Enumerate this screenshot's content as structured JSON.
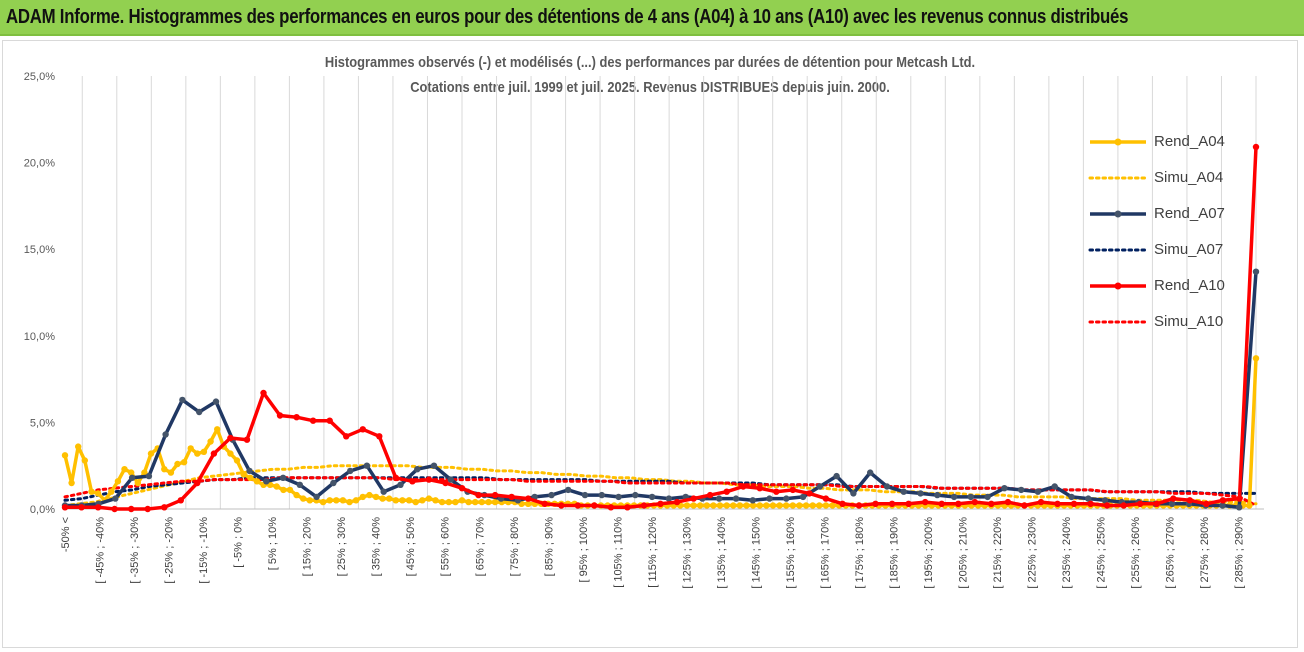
{
  "banner": {
    "title": "ADAM Informe. Histogrammes des performances en euros pour des détentions de 4 ans (A04) à 10 ans (A10) avec les revenus connus distribués"
  },
  "chart_data": {
    "type": "line",
    "title": "Histogrammes observés (-) et modélisés (...) des performances par durées de détention pour Metcash Ltd.",
    "subtitle": "Cotations entre juil. 1999 et juil. 2025. Revenus DISTRIBUES depuis juin. 2000.",
    "xlabel": "",
    "ylabel": "",
    "ylim": [
      0,
      25
    ],
    "y_ticks": [
      "0,0%",
      "5,0%",
      "10,0%",
      "15,0%",
      "20,0%",
      "25,0%"
    ],
    "grid": "vertical",
    "legend_position": "right",
    "x_labels": [
      "-50% <",
      "[ -45% ; -40%",
      "[ -35% ; -30%",
      "[ -25% ; -20%",
      "[ -15% ; -10%",
      "[ -5% ; 0%",
      "[ 5% ; 10%",
      "[ 15% ; 20%",
      "[ 25% ; 30%",
      "[ 35% ; 40%",
      "[ 45% ; 50%",
      "[ 55% ; 60%",
      "[ 65% ; 70%",
      "[ 75% ; 80%",
      "[ 85% ; 90%",
      "[ 95% ; 100%",
      "[ 105% ; 110%",
      "[ 115% ; 120%",
      "[ 125% ; 130%",
      "[ 135% ; 140%",
      "[ 145% ; 150%",
      "[ 155% ; 160%",
      "[ 165% ; 170%",
      "[ 175% ; 180%",
      "[ 185% ; 190%",
      "[ 195% ; 200%",
      "[ 205% ; 210%",
      "[ 215% ; 220%",
      "[ 225% ; 230%",
      "[ 235% ; 240%",
      "[ 245% ; 250%",
      "[ 255% ; 260%",
      "[ 265% ; 270%",
      "[ 275% ; 280%",
      "[ 285% ; 290%"
    ],
    "series": [
      {
        "name": "Rend_A04",
        "style": "solid",
        "markers": true,
        "color": "#ffc000",
        "values": [
          3.1,
          1.5,
          3.6,
          2.8,
          1.0,
          0.9,
          0.5,
          1.0,
          1.6,
          2.3,
          2.1,
          1.5,
          2.1,
          3.2,
          3.5,
          2.3,
          2.1,
          2.6,
          2.7,
          3.5,
          3.2,
          3.3,
          3.9,
          4.6,
          3.6,
          3.2,
          2.8,
          2.0,
          1.8,
          1.6,
          1.4,
          1.4,
          1.3,
          1.1,
          1.1,
          0.8,
          0.6,
          0.5,
          0.5,
          0.4,
          0.5,
          0.5,
          0.5,
          0.4,
          0.5,
          0.7,
          0.8,
          0.7,
          0.6,
          0.6,
          0.5,
          0.5,
          0.5,
          0.4,
          0.5,
          0.6,
          0.5,
          0.4,
          0.4,
          0.4,
          0.5,
          0.4,
          0.4,
          0.4,
          0.4,
          0.4,
          0.4,
          0.4,
          0.4,
          0.3,
          0.3,
          0.3,
          0.3,
          0.3,
          0.3,
          0.3,
          0.3,
          0.3,
          0.2,
          0.2,
          0.2,
          0.2,
          0.2,
          0.2,
          0.2,
          0.2,
          0.2,
          0.2,
          0.2,
          0.2,
          0.2,
          0.2,
          0.2,
          0.2,
          0.2,
          0.2,
          0.2,
          0.2,
          0.2,
          0.2,
          0.2,
          0.2,
          0.2,
          0.2,
          0.2,
          0.2,
          0.2,
          0.2,
          0.2,
          0.2,
          0.2,
          0.2,
          0.2,
          0.2,
          0.2,
          0.2,
          0.2,
          0.2,
          0.2,
          0.2,
          0.2,
          0.2,
          0.2,
          0.2,
          0.2,
          0.2,
          0.2,
          0.2,
          0.2,
          0.2,
          0.2,
          0.2,
          0.2,
          0.2,
          0.2,
          0.2,
          0.2,
          0.2,
          0.2,
          0.2,
          0.2,
          0.2,
          0.2,
          0.2,
          0.2,
          0.2,
          0.2,
          0.2,
          0.2,
          0.2,
          0.2,
          0.2,
          0.2,
          0.2,
          0.2,
          0.2,
          0.2,
          0.2,
          0.2,
          0.2,
          0.2,
          0.2,
          0.2,
          0.2,
          0.2,
          0.2,
          0.2,
          0.2,
          0.2,
          0.2,
          0.2,
          0.2,
          0.2,
          0.2,
          0.2,
          0.2,
          0.2,
          0.2,
          0.2,
          0.2,
          8.7
        ]
      },
      {
        "name": "Simu_A04",
        "style": "dotted",
        "markers": false,
        "color": "#ffc000",
        "values": [
          0.2,
          0.3,
          0.4,
          0.6,
          0.8,
          1.0,
          1.2,
          1.4,
          1.6,
          1.8,
          1.9,
          2.0,
          2.1,
          2.2,
          2.3,
          2.3,
          2.4,
          2.4,
          2.5,
          2.5,
          2.5,
          2.5,
          2.5,
          2.5,
          2.4,
          2.4,
          2.4,
          2.3,
          2.3,
          2.2,
          2.2,
          2.1,
          2.1,
          2.0,
          2.0,
          1.9,
          1.9,
          1.8,
          1.8,
          1.7,
          1.7,
          1.6,
          1.6,
          1.5,
          1.5,
          1.4,
          1.4,
          1.3,
          1.3,
          1.3,
          1.2,
          1.2,
          1.1,
          1.1,
          1.1,
          1.0,
          1.0,
          1.0,
          0.9,
          0.9,
          0.9,
          0.8,
          0.8,
          0.8,
          0.7,
          0.7,
          0.7,
          0.7,
          0.6,
          0.6,
          0.6,
          0.6,
          0.5,
          0.5,
          0.5,
          0.5,
          0.5,
          0.4,
          0.4,
          0.4,
          0.3
        ]
      },
      {
        "name": "Rend_A07",
        "style": "solid",
        "markers": true,
        "color": "#203864",
        "values": [
          0.2,
          0.2,
          0.3,
          0.6,
          1.8,
          1.9,
          4.3,
          6.3,
          5.6,
          6.2,
          4.0,
          2.2,
          1.6,
          1.8,
          1.4,
          0.7,
          1.5,
          2.2,
          2.5,
          1.0,
          1.4,
          2.3,
          2.5,
          1.7,
          1.0,
          0.8,
          0.6,
          0.5,
          0.7,
          0.8,
          1.1,
          0.8,
          0.8,
          0.7,
          0.8,
          0.7,
          0.6,
          0.7,
          0.6,
          0.6,
          0.6,
          0.5,
          0.6,
          0.6,
          0.7,
          1.3,
          1.9,
          0.9,
          2.1,
          1.3,
          1.0,
          0.9,
          0.8,
          0.7,
          0.7,
          0.7,
          1.2,
          1.1,
          1.0,
          1.3,
          0.7,
          0.6,
          0.5,
          0.4,
          0.4,
          0.3,
          0.3,
          0.3,
          0.2,
          0.2,
          0.1,
          13.7
        ]
      },
      {
        "name": "Simu_A07",
        "style": "dotted",
        "markers": false,
        "color": "#002060",
        "values": [
          0.5,
          0.6,
          0.8,
          1.0,
          1.1,
          1.3,
          1.4,
          1.5,
          1.6,
          1.7,
          1.7,
          1.8,
          1.8,
          1.8,
          1.8,
          1.8,
          1.8,
          1.8,
          1.8,
          1.8,
          1.8,
          1.8,
          1.8,
          1.8,
          1.8,
          1.8,
          1.7,
          1.7,
          1.7,
          1.7,
          1.7,
          1.7,
          1.6,
          1.6,
          1.6,
          1.6,
          1.6,
          1.5,
          1.5,
          1.5,
          1.5,
          1.5,
          1.4,
          1.4,
          1.4,
          1.4,
          1.4,
          1.3,
          1.3,
          1.3,
          1.3,
          1.3,
          1.2,
          1.2,
          1.2,
          1.2,
          1.2,
          1.1,
          1.1,
          1.1,
          1.1,
          1.1,
          1.0,
          1.0,
          1.0,
          1.0,
          1.0,
          1.0,
          0.9,
          0.9,
          0.9,
          0.9
        ]
      },
      {
        "name": "Rend_A10",
        "style": "solid",
        "markers": true,
        "color": "#ff0000",
        "values": [
          0.1,
          0.1,
          0.1,
          0.0,
          0.0,
          0.0,
          0.1,
          0.5,
          1.5,
          3.2,
          4.1,
          4.0,
          6.7,
          5.4,
          5.3,
          5.1,
          5.1,
          4.2,
          4.6,
          4.2,
          1.8,
          1.6,
          1.7,
          1.5,
          1.2,
          0.8,
          0.8,
          0.7,
          0.6,
          0.3,
          0.2,
          0.2,
          0.2,
          0.1,
          0.1,
          0.2,
          0.3,
          0.4,
          0.6,
          0.8,
          1.0,
          1.3,
          1.2,
          1.0,
          1.1,
          0.9,
          0.6,
          0.3,
          0.2,
          0.3,
          0.3,
          0.3,
          0.4,
          0.3,
          0.3,
          0.4,
          0.3,
          0.4,
          0.2,
          0.4,
          0.3,
          0.3,
          0.3,
          0.2,
          0.2,
          0.3,
          0.3,
          0.6,
          0.5,
          0.3,
          0.5,
          0.6,
          20.9
        ]
      },
      {
        "name": "Simu_A10",
        "style": "dotted",
        "markers": false,
        "color": "#ff0000",
        "values": [
          0.7,
          0.9,
          1.1,
          1.2,
          1.3,
          1.4,
          1.5,
          1.6,
          1.6,
          1.7,
          1.7,
          1.7,
          1.7,
          1.8,
          1.8,
          1.8,
          1.8,
          1.8,
          1.8,
          1.8,
          1.7,
          1.7,
          1.7,
          1.7,
          1.7,
          1.7,
          1.7,
          1.7,
          1.6,
          1.6,
          1.6,
          1.6,
          1.6,
          1.6,
          1.5,
          1.5,
          1.5,
          1.5,
          1.5,
          1.5,
          1.5,
          1.4,
          1.4,
          1.4,
          1.4,
          1.4,
          1.4,
          1.3,
          1.3,
          1.3,
          1.3,
          1.3,
          1.3,
          1.2,
          1.2,
          1.2,
          1.2,
          1.2,
          1.1,
          1.1,
          1.1,
          1.1,
          1.1,
          1.0,
          1.0,
          1.0,
          1.0,
          0.9,
          0.9,
          0.9,
          0.8,
          0.7,
          0.2
        ]
      }
    ]
  }
}
